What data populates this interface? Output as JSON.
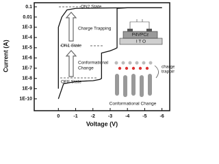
{
  "chart_data": {
    "type": "line",
    "log_y": true,
    "xlabel": "Voltage (V)",
    "ylabel": "Current (A)",
    "xlim": [
      1.4,
      -6.45
    ],
    "xticks": [
      0,
      -1,
      -2,
      -3,
      -4,
      -5,
      -6
    ],
    "ylim": [
      7e-12,
      0.25
    ],
    "yticks": [
      {
        "value": 1e-10,
        "label": "1E-10"
      },
      {
        "value": 1e-09,
        "label": "1E-9"
      },
      {
        "value": 1e-08,
        "label": "1E-8"
      },
      {
        "value": 1e-07,
        "label": "1E-7"
      },
      {
        "value": 1e-06,
        "label": "1E-6"
      },
      {
        "value": 1e-05,
        "label": "1E-5"
      },
      {
        "value": 0.0001,
        "label": "1E-4"
      },
      {
        "value": 0.001,
        "label": "1E-3"
      },
      0.01,
      0.1
    ],
    "series": [
      {
        "color": "#111111",
        "x": [
          0,
          -0.3,
          -1,
          -2,
          -2.4,
          -2.5,
          -2.5,
          -3,
          -3.3,
          -3.4,
          -3.4,
          -4,
          -5,
          -6
        ],
        "values": [
          1e-10,
          3e-09,
          5e-09,
          6e-09,
          8e-09,
          1e-08,
          3e-06,
          5e-06,
          8e-06,
          1e-05,
          0.07,
          0.08,
          0.08,
          0.08
        ]
      },
      {
        "color": "#111111",
        "x": [
          -6,
          -4,
          -2,
          -1,
          -0.5,
          -0.2,
          0,
          0
        ],
        "values": [
          0.08,
          0.08,
          0.075,
          0.07,
          0.05,
          0.01,
          0.001,
          1e-09
        ]
      }
    ],
    "annotations": [
      "ON2 State",
      "Charge Trapping",
      "ON1 State",
      "Conformational",
      "Change",
      "OFF State",
      "P4VPCz",
      "I T O",
      "charge",
      "trapping",
      "Conformational Change"
    ]
  }
}
